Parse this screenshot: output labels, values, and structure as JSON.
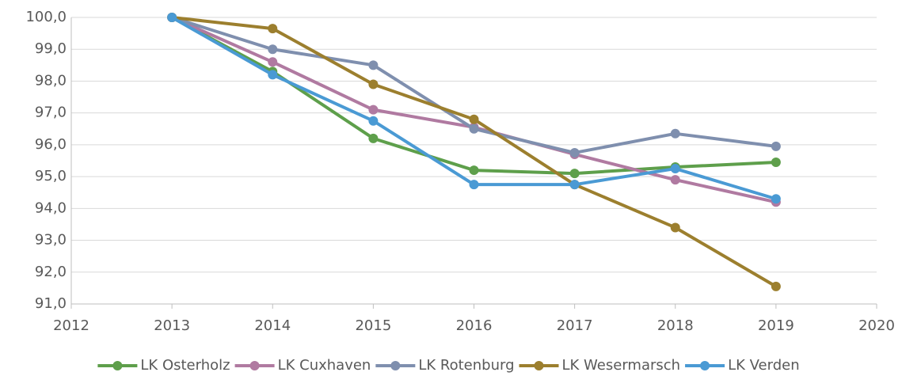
{
  "chart_data": {
    "type": "line",
    "x": [
      2013,
      2014,
      2015,
      2016,
      2017,
      2018,
      2019
    ],
    "series": [
      {
        "name": "LK Osterholz",
        "color": "#5e9f4b",
        "values": [
          100,
          98.3,
          96.2,
          95.2,
          95.1,
          95.3,
          95.45
        ]
      },
      {
        "name": "LK Cuxhaven",
        "color": "#b07aa1",
        "values": [
          100,
          98.6,
          97.1,
          96.55,
          95.7,
          94.9,
          94.2
        ]
      },
      {
        "name": "LK Rotenburg",
        "color": "#7f8fae",
        "values": [
          100,
          99.0,
          98.5,
          96.5,
          95.75,
          96.35,
          95.95
        ]
      },
      {
        "name": "LK Wesermarsch",
        "color": "#9c7f2e",
        "values": [
          100,
          99.65,
          97.9,
          96.8,
          94.75,
          93.4,
          91.55
        ]
      },
      {
        "name": "LK Verden",
        "color": "#4a9ad4",
        "values": [
          100,
          98.2,
          96.75,
          94.75,
          94.75,
          95.25,
          94.3
        ]
      }
    ],
    "xlim": [
      2012,
      2020
    ],
    "xticks": [
      2012,
      2013,
      2014,
      2015,
      2016,
      2017,
      2018,
      2019,
      2020
    ],
    "ylim": [
      91,
      100
    ],
    "yticks": [
      {
        "value": 91,
        "label": "91,0"
      },
      {
        "value": 92,
        "label": "92,0"
      },
      {
        "value": 93,
        "label": "93,0"
      },
      {
        "value": 94,
        "label": "94,0"
      },
      {
        "value": 95,
        "label": "95,0"
      },
      {
        "value": 96,
        "label": "96,0"
      },
      {
        "value": 97,
        "label": "97,0"
      },
      {
        "value": 98,
        "label": "98,0"
      },
      {
        "value": 99,
        "label": "99,0"
      },
      {
        "value": 100,
        "label": "100,0"
      }
    ],
    "grid": true,
    "legend": "bottom"
  }
}
